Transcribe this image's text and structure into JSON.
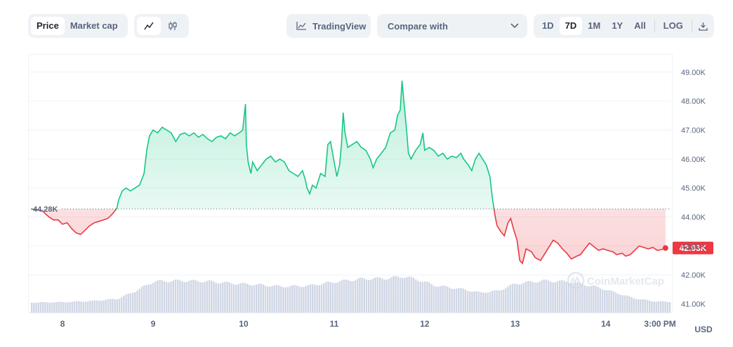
{
  "toolbar": {
    "metric_tabs": [
      {
        "label": "Price",
        "active": true
      },
      {
        "label": "Market cap",
        "active": false
      }
    ],
    "chart_style_icons": [
      "line-chart-icon",
      "candlestick-icon"
    ],
    "tradingview_label": "TradingView",
    "compare_label": "Compare with",
    "range_tabs": [
      {
        "label": "1D",
        "active": false
      },
      {
        "label": "7D",
        "active": true
      },
      {
        "label": "1M",
        "active": false
      },
      {
        "label": "1Y",
        "active": false
      },
      {
        "label": "All",
        "active": false
      }
    ],
    "log_label": "LOG",
    "download_icon": "download-icon"
  },
  "watermark": "CoinMarketCap",
  "currency": "USD",
  "colors": {
    "up": "#16c784",
    "down": "#ea3943",
    "volume": "#cfd6e4",
    "grid": "#eff2f5"
  },
  "chart_data": {
    "type": "line",
    "title": "",
    "xlabel": "",
    "ylabel": "",
    "x_tick_labels": [
      "8",
      "9",
      "10",
      "11",
      "12",
      "13",
      "14",
      "3:00 PM"
    ],
    "y_tick_labels": [
      "41.00K",
      "42.00K",
      "43.00K",
      "44.00K",
      "45.00K",
      "46.00K",
      "47.00K",
      "48.00K",
      "49.00K"
    ],
    "ylim": [
      40.7,
      49.6
    ],
    "xlim": [
      7.65,
      14.7
    ],
    "reference_price": 44.28,
    "reference_label": "44.28K",
    "current_price": 42.93,
    "current_label": "42.93K",
    "grid": true,
    "series": [
      {
        "values_unit": "thousand USD",
        "points": [
          [
            7.65,
            44.28
          ],
          [
            7.72,
            44.25
          ],
          [
            7.78,
            44.2
          ],
          [
            7.85,
            44.0
          ],
          [
            7.9,
            43.9
          ],
          [
            7.95,
            43.9
          ],
          [
            8.0,
            43.75
          ],
          [
            8.05,
            43.8
          ],
          [
            8.1,
            43.6
          ],
          [
            8.15,
            43.45
          ],
          [
            8.2,
            43.4
          ],
          [
            8.25,
            43.55
          ],
          [
            8.3,
            43.7
          ],
          [
            8.35,
            43.8
          ],
          [
            8.4,
            43.85
          ],
          [
            8.45,
            43.9
          ],
          [
            8.5,
            43.95
          ],
          [
            8.55,
            44.1
          ],
          [
            8.6,
            44.3
          ],
          [
            8.62,
            44.6
          ],
          [
            8.66,
            44.9
          ],
          [
            8.7,
            45.0
          ],
          [
            8.75,
            44.9
          ],
          [
            8.8,
            45.0
          ],
          [
            8.85,
            45.1
          ],
          [
            8.9,
            45.5
          ],
          [
            8.93,
            46.3
          ],
          [
            8.96,
            46.8
          ],
          [
            9.0,
            47.0
          ],
          [
            9.05,
            46.9
          ],
          [
            9.1,
            47.1
          ],
          [
            9.15,
            47.0
          ],
          [
            9.2,
            46.9
          ],
          [
            9.25,
            46.6
          ],
          [
            9.3,
            46.85
          ],
          [
            9.35,
            46.9
          ],
          [
            9.4,
            46.8
          ],
          [
            9.45,
            46.9
          ],
          [
            9.5,
            46.75
          ],
          [
            9.55,
            46.85
          ],
          [
            9.6,
            46.7
          ],
          [
            9.65,
            46.6
          ],
          [
            9.7,
            46.75
          ],
          [
            9.75,
            46.8
          ],
          [
            9.8,
            46.7
          ],
          [
            9.85,
            46.9
          ],
          [
            9.9,
            46.8
          ],
          [
            9.95,
            46.9
          ],
          [
            9.99,
            47.0
          ],
          [
            10.02,
            47.9
          ],
          [
            10.03,
            46.5
          ],
          [
            10.05,
            45.9
          ],
          [
            10.08,
            45.5
          ],
          [
            10.1,
            45.9
          ],
          [
            10.15,
            45.6
          ],
          [
            10.2,
            45.8
          ],
          [
            10.25,
            46.0
          ],
          [
            10.3,
            46.1
          ],
          [
            10.35,
            45.9
          ],
          [
            10.4,
            46.0
          ],
          [
            10.45,
            45.9
          ],
          [
            10.5,
            45.6
          ],
          [
            10.55,
            45.5
          ],
          [
            10.6,
            45.4
          ],
          [
            10.65,
            45.6
          ],
          [
            10.68,
            45.3
          ],
          [
            10.7,
            45.0
          ],
          [
            10.73,
            44.8
          ],
          [
            10.76,
            45.1
          ],
          [
            10.8,
            45.0
          ],
          [
            10.85,
            45.5
          ],
          [
            10.9,
            45.4
          ],
          [
            10.93,
            46.5
          ],
          [
            10.96,
            46.6
          ],
          [
            11.0,
            45.9
          ],
          [
            11.03,
            45.4
          ],
          [
            11.06,
            45.8
          ],
          [
            11.08,
            46.5
          ],
          [
            11.1,
            47.6
          ],
          [
            11.12,
            46.9
          ],
          [
            11.15,
            46.4
          ],
          [
            11.2,
            46.5
          ],
          [
            11.25,
            46.6
          ],
          [
            11.3,
            46.4
          ],
          [
            11.35,
            46.3
          ],
          [
            11.4,
            46.0
          ],
          [
            11.43,
            45.7
          ],
          [
            11.47,
            46.0
          ],
          [
            11.52,
            46.2
          ],
          [
            11.57,
            46.4
          ],
          [
            11.62,
            46.9
          ],
          [
            11.67,
            47.0
          ],
          [
            11.7,
            47.5
          ],
          [
            11.73,
            47.7
          ],
          [
            11.75,
            48.7
          ],
          [
            11.77,
            48.0
          ],
          [
            11.8,
            47.0
          ],
          [
            11.82,
            46.2
          ],
          [
            11.85,
            46.0
          ],
          [
            11.9,
            46.3
          ],
          [
            11.95,
            46.5
          ],
          [
            11.98,
            46.9
          ],
          [
            12.0,
            46.3
          ],
          [
            12.05,
            46.4
          ],
          [
            12.1,
            46.3
          ],
          [
            12.15,
            46.1
          ],
          [
            12.2,
            46.2
          ],
          [
            12.25,
            46.0
          ],
          [
            12.3,
            46.1
          ],
          [
            12.35,
            46.05
          ],
          [
            12.4,
            46.2
          ],
          [
            12.43,
            46.0
          ],
          [
            12.48,
            45.8
          ],
          [
            12.52,
            45.6
          ],
          [
            12.56,
            46.0
          ],
          [
            12.6,
            46.2
          ],
          [
            12.64,
            46.0
          ],
          [
            12.68,
            45.8
          ],
          [
            12.72,
            45.4
          ],
          [
            12.75,
            44.6
          ],
          [
            12.78,
            44.0
          ],
          [
            12.8,
            43.7
          ],
          [
            12.84,
            43.5
          ],
          [
            12.88,
            43.35
          ],
          [
            12.92,
            43.8
          ],
          [
            12.95,
            43.95
          ],
          [
            12.98,
            43.6
          ],
          [
            13.02,
            43.2
          ],
          [
            13.05,
            42.5
          ],
          [
            13.08,
            42.4
          ],
          [
            13.12,
            42.9
          ],
          [
            13.18,
            42.8
          ],
          [
            13.22,
            42.6
          ],
          [
            13.28,
            42.5
          ],
          [
            13.32,
            42.7
          ],
          [
            13.38,
            43.0
          ],
          [
            13.42,
            43.2
          ],
          [
            13.47,
            43.1
          ],
          [
            13.52,
            42.9
          ],
          [
            13.57,
            42.75
          ],
          [
            13.62,
            42.55
          ],
          [
            13.68,
            42.65
          ],
          [
            13.72,
            42.7
          ],
          [
            13.77,
            42.9
          ],
          [
            13.82,
            43.1
          ],
          [
            13.88,
            42.95
          ],
          [
            13.92,
            42.85
          ],
          [
            13.97,
            42.9
          ],
          [
            14.02,
            42.85
          ],
          [
            14.08,
            42.8
          ],
          [
            14.12,
            42.7
          ],
          [
            14.18,
            42.75
          ],
          [
            14.22,
            42.65
          ],
          [
            14.27,
            42.7
          ],
          [
            14.32,
            42.85
          ],
          [
            14.37,
            43.0
          ],
          [
            14.42,
            42.95
          ],
          [
            14.47,
            42.9
          ],
          [
            14.52,
            42.95
          ],
          [
            14.57,
            42.85
          ],
          [
            14.62,
            42.88
          ],
          [
            14.66,
            42.93
          ]
        ]
      }
    ],
    "volume": {
      "values_unit": "relative",
      "points": [
        [
          7.65,
          0.28
        ],
        [
          8.0,
          0.29
        ],
        [
          8.3,
          0.32
        ],
        [
          8.6,
          0.38
        ],
        [
          8.8,
          0.6
        ],
        [
          9.0,
          0.86
        ],
        [
          9.3,
          0.88
        ],
        [
          9.6,
          0.86
        ],
        [
          9.9,
          0.8
        ],
        [
          10.1,
          0.78
        ],
        [
          10.4,
          0.72
        ],
        [
          10.7,
          0.74
        ],
        [
          11.0,
          0.85
        ],
        [
          11.3,
          0.93
        ],
        [
          11.6,
          0.95
        ],
        [
          11.75,
          1.0
        ],
        [
          11.9,
          0.92
        ],
        [
          12.1,
          0.75
        ],
        [
          12.4,
          0.65
        ],
        [
          12.6,
          0.55
        ],
        [
          12.8,
          0.6
        ],
        [
          13.0,
          0.8
        ],
        [
          13.3,
          0.88
        ],
        [
          13.6,
          0.85
        ],
        [
          13.9,
          0.7
        ],
        [
          14.1,
          0.55
        ],
        [
          14.3,
          0.4
        ],
        [
          14.5,
          0.32
        ],
        [
          14.66,
          0.3
        ]
      ]
    }
  }
}
